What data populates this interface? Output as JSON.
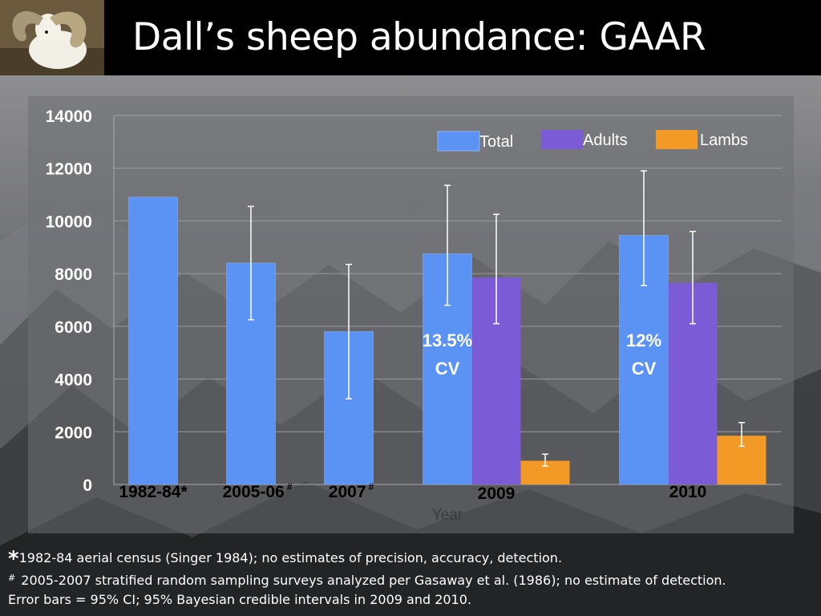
{
  "title": "Dall’s sheep abundance: GAAR",
  "chart_data": {
    "type": "bar",
    "categories": [
      "1982-84*",
      "2005-06",
      "2007",
      "2009",
      "2010"
    ],
    "category_marks": [
      "",
      "#",
      "#",
      "",
      ""
    ],
    "xlabel": "Year",
    "ylabel": "",
    "ylim": [
      0,
      14000
    ],
    "yticks": [
      0,
      2000,
      4000,
      6000,
      8000,
      10000,
      12000,
      14000
    ],
    "grid": true,
    "legend_position": "top-right",
    "series": [
      {
        "name": "Total",
        "color": "#5b93f5",
        "values": [
          10900,
          8400,
          5800,
          8750,
          9450
        ],
        "ci_low": [
          null,
          6250,
          3250,
          6800,
          7550
        ],
        "ci_high": [
          null,
          10550,
          8350,
          11350,
          11900
        ]
      },
      {
        "name": "Adults",
        "color": "#7c5cd6",
        "values": [
          null,
          null,
          null,
          7850,
          7650
        ],
        "ci_low": [
          null,
          null,
          null,
          6100,
          6100
        ],
        "ci_high": [
          null,
          null,
          null,
          10250,
          9600
        ]
      },
      {
        "name": "Lambs",
        "color": "#f39a26",
        "values": [
          null,
          null,
          null,
          900,
          1850
        ],
        "ci_low": [
          null,
          null,
          null,
          700,
          1450
        ],
        "ci_high": [
          null,
          null,
          null,
          1150,
          2350
        ]
      }
    ],
    "annotations": [
      {
        "category": "2009",
        "lines": [
          "13.5%",
          "CV"
        ]
      },
      {
        "category": "2010",
        "lines": [
          "12%",
          "CV"
        ]
      }
    ]
  },
  "footnotes": {
    "line1_mark": "*",
    "line1": "1982-84 aerial census (Singer  1984); no estimates of precision, accuracy, detection.",
    "line2_mark": "#",
    "line2": " 2005-2007 stratified random sampling surveys analyzed per Gasaway et al. (1986); no estimate of detection.",
    "line3": "Error bars = 95% CI; 95% Bayesian credible intervals in 2009 and 2010."
  },
  "colors": {
    "header": "#000000",
    "plot_bg": "#6e6f72",
    "text": "#ffffff"
  }
}
